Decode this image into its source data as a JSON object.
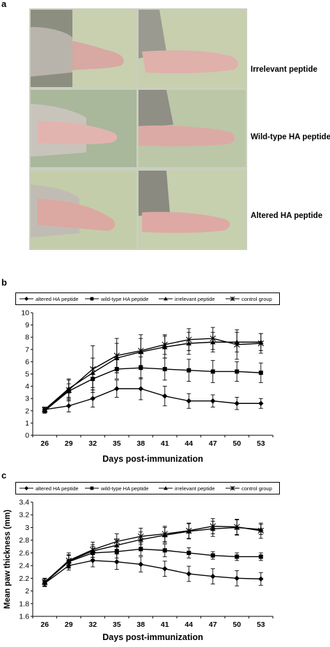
{
  "panels": {
    "a": "a",
    "b": "b",
    "c": "c"
  },
  "photo_rows": [
    {
      "label": "Irrelevant peptide"
    },
    {
      "label": "Wild-type HA peptide"
    },
    {
      "label": "Altered HA peptide"
    }
  ],
  "legend": [
    {
      "name": "altered HA peptide",
      "marker": "diamond"
    },
    {
      "name": "wild-type HA peptide",
      "marker": "square"
    },
    {
      "name": "irrelevant peptide",
      "marker": "triangle"
    },
    {
      "name": "control group",
      "marker": "star"
    }
  ],
  "chart_data": [
    {
      "type": "line",
      "panel": "b",
      "title": "",
      "xlabel": "Days post-immunization",
      "ylabel": "",
      "x": [
        26,
        29,
        32,
        35,
        38,
        41,
        44,
        47,
        50,
        53
      ],
      "ylim": [
        0,
        10
      ],
      "yticks": [
        0,
        1,
        2,
        3,
        4,
        5,
        6,
        7,
        8,
        9,
        10
      ],
      "grid": false,
      "legend_position": "top",
      "series": [
        {
          "name": "altered HA peptide",
          "marker": "diamond",
          "values": [
            2.1,
            2.4,
            3.0,
            3.8,
            3.8,
            3.2,
            2.8,
            2.8,
            2.6,
            2.6
          ],
          "errors": [
            0.2,
            0.5,
            0.7,
            0.7,
            0.9,
            0.8,
            0.6,
            0.5,
            0.5,
            0.4
          ]
        },
        {
          "name": "wild-type HA peptide",
          "marker": "square",
          "values": [
            2.0,
            3.6,
            4.6,
            5.4,
            5.5,
            5.4,
            5.3,
            5.2,
            5.2,
            5.1
          ],
          "errors": [
            0.2,
            0.6,
            0.9,
            0.8,
            0.9,
            0.9,
            0.9,
            0.9,
            0.8,
            0.8
          ]
        },
        {
          "name": "irrelevant peptide",
          "marker": "triangle",
          "values": [
            2.1,
            3.8,
            5.1,
            6.3,
            6.8,
            7.2,
            7.5,
            7.6,
            7.6,
            7.6
          ],
          "errors": [
            0.2,
            0.7,
            1.2,
            1.2,
            1.1,
            0.9,
            0.9,
            0.8,
            0.8,
            0.7
          ]
        },
        {
          "name": "control group",
          "marker": "star",
          "values": [
            2.1,
            3.7,
            5.4,
            6.5,
            6.9,
            7.4,
            7.8,
            7.9,
            7.4,
            7.5
          ],
          "errors": [
            0.2,
            0.9,
            1.9,
            1.4,
            1.3,
            0.8,
            0.9,
            0.9,
            1.2,
            0.8
          ]
        }
      ]
    },
    {
      "type": "line",
      "panel": "c",
      "title": "",
      "xlabel": "Days post-immunization",
      "ylabel": "Mean paw thickness (mm)",
      "x": [
        26,
        29,
        32,
        35,
        38,
        41,
        44,
        47,
        50,
        53
      ],
      "ylim": [
        1.6,
        3.4
      ],
      "yticks": [
        "1.6",
        "1.8",
        "2",
        "2.2",
        "2.4",
        "2.6",
        "2.8",
        "3",
        "3.2",
        "3.4"
      ],
      "grid": false,
      "legend_position": "top",
      "series": [
        {
          "name": "altered HA peptide",
          "marker": "diamond",
          "values": [
            2.12,
            2.4,
            2.48,
            2.46,
            2.42,
            2.35,
            2.27,
            2.23,
            2.2,
            2.19
          ],
          "errors": [
            0.05,
            0.07,
            0.1,
            0.12,
            0.12,
            0.12,
            0.12,
            0.12,
            0.12,
            0.1
          ]
        },
        {
          "name": "wild-type HA peptide",
          "marker": "square",
          "values": [
            2.13,
            2.46,
            2.6,
            2.62,
            2.66,
            2.64,
            2.6,
            2.56,
            2.54,
            2.54
          ],
          "errors": [
            0.06,
            0.1,
            0.1,
            0.1,
            0.1,
            0.1,
            0.08,
            0.06,
            0.06,
            0.06
          ]
        },
        {
          "name": "irrelevant peptide",
          "marker": "triangle",
          "values": [
            2.14,
            2.47,
            2.63,
            2.72,
            2.81,
            2.88,
            2.94,
            2.98,
            3.0,
            2.97
          ],
          "errors": [
            0.06,
            0.1,
            0.1,
            0.1,
            0.12,
            0.12,
            0.12,
            0.12,
            0.12,
            0.08
          ]
        },
        {
          "name": "control group",
          "marker": "star",
          "values": [
            2.14,
            2.48,
            2.65,
            2.78,
            2.86,
            2.9,
            2.95,
            3.02,
            3.01,
            2.95
          ],
          "errors": [
            0.06,
            0.12,
            0.12,
            0.12,
            0.13,
            0.12,
            0.12,
            0.12,
            0.12,
            0.12
          ]
        }
      ]
    }
  ]
}
